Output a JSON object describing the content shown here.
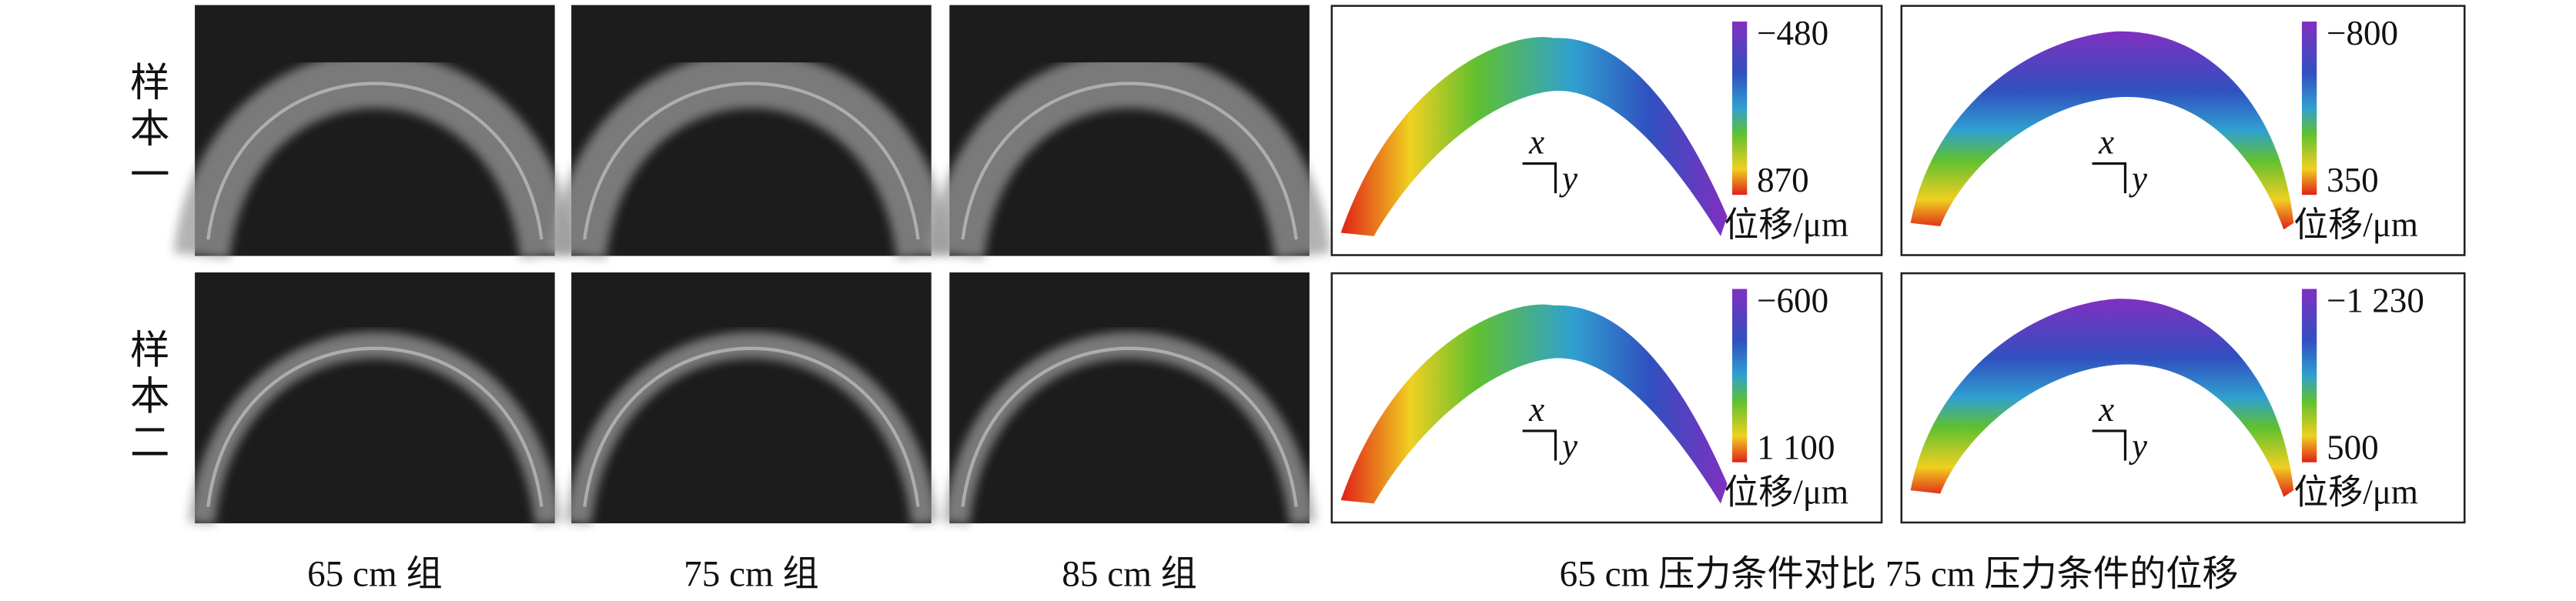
{
  "row_labels": [
    "样本一",
    "样本二"
  ],
  "column_labels": [
    "65 cm 组",
    "75 cm 组",
    "85 cm 组"
  ],
  "comparison_label": "65 cm 压力条件对比 75 cm 压力条件的位移",
  "axes": {
    "x": "x",
    "y": "y"
  },
  "colorbar_unit": "位移/μm",
  "displacement_panels": [
    {
      "top": "−480",
      "bottom": "870"
    },
    {
      "top": "−800",
      "bottom": "350"
    },
    {
      "top": "−600",
      "bottom": "1 100"
    },
    {
      "top": "−1 230",
      "bottom": "500"
    }
  ]
}
